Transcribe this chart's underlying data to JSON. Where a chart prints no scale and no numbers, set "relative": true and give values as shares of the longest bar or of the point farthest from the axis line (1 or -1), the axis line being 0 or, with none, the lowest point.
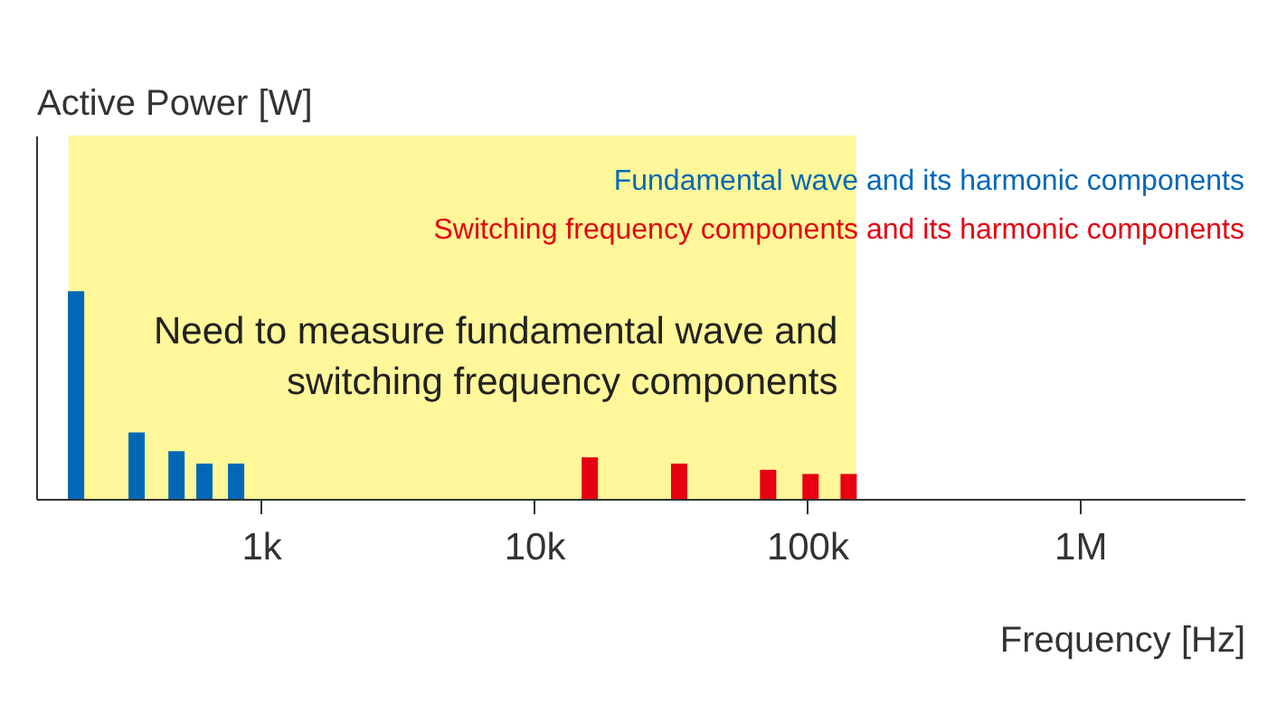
{
  "chart_data": {
    "type": "bar",
    "relative": true,
    "xlabel": "Frequency [Hz]",
    "ylabel": "Active Power [W]",
    "log": "x",
    "xlim": [
      150,
      4000000
    ],
    "xticks": [
      {
        "value": 1000,
        "label": "1k"
      },
      {
        "value": 10000,
        "label": "10k"
      },
      {
        "value": 100000,
        "label": "100k"
      },
      {
        "value": 1000000,
        "label": "1M"
      }
    ],
    "grid": false,
    "legend": "top right",
    "series": [
      {
        "name": "Fundamental wave and its harmonic components",
        "color": "#0068b7",
        "x": [
          210,
          350,
          490,
          620,
          810
        ],
        "values": [
          1,
          0.32,
          0.23,
          0.17,
          0.17
        ]
      },
      {
        "name": "Switching frequency components and its harmonic components",
        "color": "#e60012",
        "x": [
          16000,
          34000,
          72000,
          103000,
          142000
        ],
        "values": [
          0.2,
          0.17,
          0.14,
          0.12,
          0.12
        ]
      }
    ],
    "bands": [
      {
        "axis": "x",
        "from": 197,
        "to": 151000,
        "color": "#fff799",
        "label": "Need to measure fundamental wave and switching frequency components"
      }
    ]
  }
}
